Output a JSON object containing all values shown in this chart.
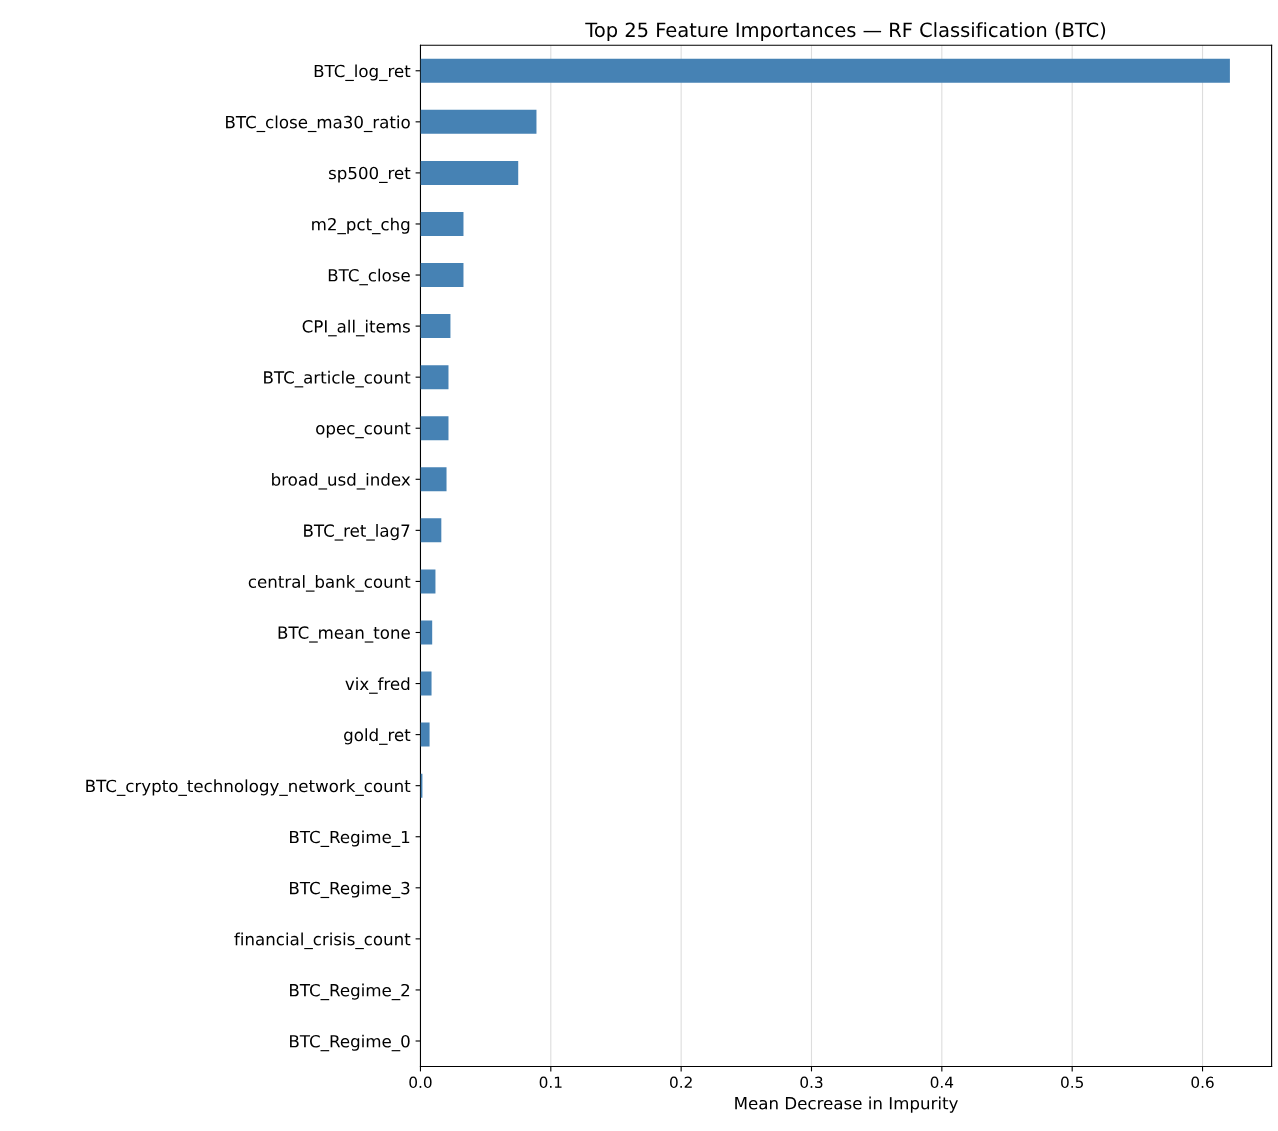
{
  "chart_data": {
    "type": "bar",
    "orientation": "horizontal",
    "title": "Top 25 Feature Importances — RF Classification (BTC)",
    "xlabel": "Mean Decrease in Impurity",
    "categories": [
      "BTC_log_ret",
      "BTC_close_ma30_ratio",
      "sp500_ret",
      "m2_pct_chg",
      "BTC_close",
      "CPI_all_items",
      "BTC_article_count",
      "opec_count",
      "broad_usd_index",
      "BTC_ret_lag7",
      "central_bank_count",
      "BTC_mean_tone",
      "vix_fred",
      "gold_ret",
      "BTC_crypto_technology_network_count",
      "BTC_Regime_1",
      "BTC_Regime_3",
      "financial_crisis_count",
      "BTC_Regime_2",
      "BTC_Regime_0"
    ],
    "values": [
      0.621,
      0.089,
      0.075,
      0.033,
      0.033,
      0.023,
      0.0215,
      0.0215,
      0.02,
      0.016,
      0.0115,
      0.009,
      0.0085,
      0.007,
      0.0015,
      0,
      0,
      0,
      0,
      0
    ],
    "color": "#4682b4",
    "xlim": [
      0,
      0.653
    ],
    "xticks": [
      {
        "value": 0,
        "label": "0.0"
      },
      0.1,
      0.2,
      0.3,
      0.4,
      0.5,
      0.6
    ],
    "grid": "x"
  }
}
